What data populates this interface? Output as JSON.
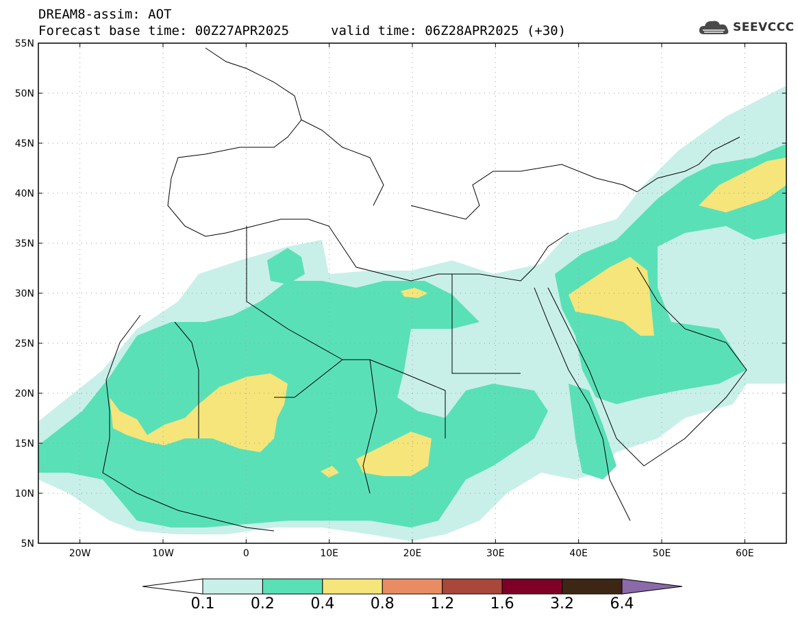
{
  "header": {
    "title_line1": "DREAM8-assim: AOT",
    "title_line2": "Forecast base time: 00Z27APR2025",
    "valid_time": "valid time: 06Z28APR2025 (+30)",
    "logo_text": "SEEVCCC",
    "logo_icon": "cloud-icon"
  },
  "map": {
    "variable": "AOT",
    "projection": "lat-lon",
    "lon_range": [
      -25,
      65
    ],
    "lat_range": [
      5,
      55
    ],
    "lon_ticks": [
      -20,
      -10,
      0,
      10,
      20,
      30,
      40,
      50,
      60
    ],
    "lon_tick_labels": [
      "20W",
      "10W",
      "0",
      "10E",
      "20E",
      "30E",
      "40E",
      "50E",
      "60E"
    ],
    "lat_ticks": [
      5,
      10,
      15,
      20,
      25,
      30,
      35,
      40,
      45,
      50,
      55
    ],
    "lat_tick_labels": [
      "5N",
      "10N",
      "15N",
      "20N",
      "25N",
      "30N",
      "35N",
      "40N",
      "45N",
      "50N",
      "55N"
    ],
    "grid": "dotted",
    "background": "#ffffff"
  },
  "colorbar": {
    "labels": [
      "0.1",
      "0.2",
      "0.4",
      "0.8",
      "1.2",
      "1.6",
      "3.2",
      "6.4"
    ],
    "colors": [
      "#ffffff",
      "#c8f0e9",
      "#5ae0b7",
      "#f5e57a",
      "#e98c63",
      "#a8473a",
      "#7e0027",
      "#3e2616",
      "#8a6aa8"
    ]
  }
}
